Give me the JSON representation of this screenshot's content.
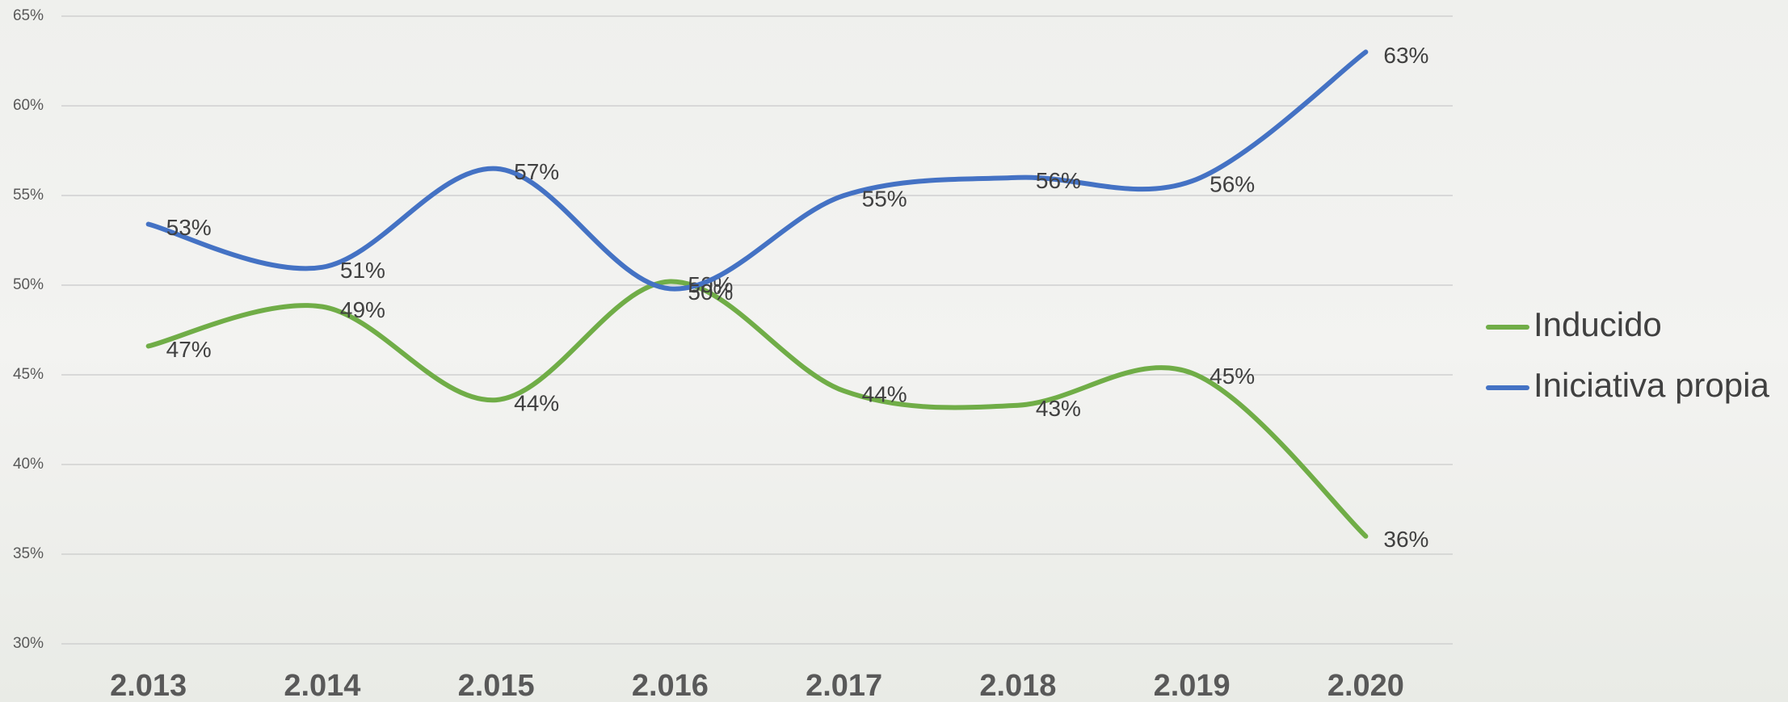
{
  "chart_data": {
    "type": "line",
    "categories": [
      "2.013",
      "2.014",
      "2.015",
      "2.016",
      "2.017",
      "2.018",
      "2.019",
      "2.020"
    ],
    "series": [
      {
        "name": "Inducido",
        "color": "#70ad47",
        "values": [
          46.6,
          48.8,
          43.6,
          50.2,
          44.1,
          43.3,
          45.1,
          36.0
        ],
        "value_labels": [
          "47%",
          "49%",
          "44%",
          "50%",
          "44%",
          "43%",
          "45%",
          "36%"
        ]
      },
      {
        "name": "Iniciativa propia",
        "color": "#4472c4",
        "values": [
          53.4,
          51.0,
          56.5,
          49.8,
          55.0,
          56.0,
          55.8,
          63.0
        ],
        "value_labels": [
          "53%",
          "51%",
          "57%",
          "50%",
          "55%",
          "56%",
          "56%",
          "63%"
        ]
      }
    ],
    "ylim": [
      30,
      65
    ],
    "yticks": [
      {
        "value": 30,
        "label": "30%"
      },
      {
        "value": 35,
        "label": "35%"
      },
      {
        "value": 40,
        "label": "40%"
      },
      {
        "value": 45,
        "label": "45%"
      },
      {
        "value": 50,
        "label": "50%"
      },
      {
        "value": 55,
        "label": "55%"
      },
      {
        "value": 60,
        "label": "60%"
      },
      {
        "value": 65,
        "label": "65%"
      }
    ],
    "grid": true,
    "smooth": true,
    "legend": "right"
  }
}
